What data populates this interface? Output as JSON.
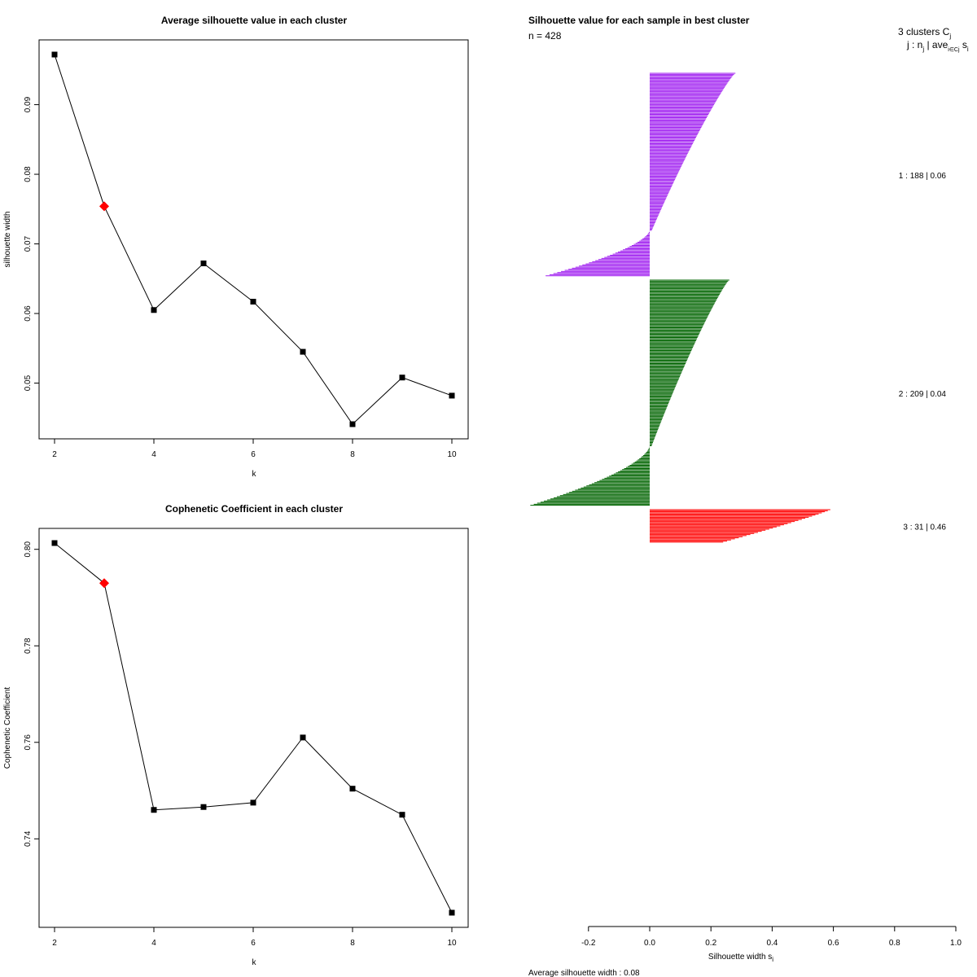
{
  "chart_data": [
    {
      "type": "line",
      "title": "Average silhouette value in each cluster",
      "xlabel": "k",
      "ylabel": "silhouette width",
      "x": [
        2,
        3,
        4,
        5,
        6,
        7,
        8,
        9,
        10
      ],
      "values": [
        0.0972,
        0.0754,
        0.0605,
        0.0672,
        0.0617,
        0.0545,
        0.0441,
        0.0508,
        0.0482
      ],
      "highlight": {
        "x": 3,
        "y": 0.0754,
        "color": "#ff0000"
      },
      "xlim": [
        2,
        10
      ],
      "ylim": [
        0.0441,
        0.0972
      ],
      "xticks": [
        2,
        4,
        6,
        8,
        10
      ],
      "xtick_labels": [
        "2",
        "4",
        "6",
        "8",
        "10"
      ],
      "yticks": [
        0.05,
        0.06,
        0.07,
        0.08,
        0.09
      ],
      "ytick_labels": [
        "0.05",
        "0.06",
        "0.07",
        "0.08",
        "0.09"
      ]
    },
    {
      "type": "line",
      "title": "Cophenetic Coefficient in each cluster",
      "xlabel": "k",
      "ylabel": "Cophenetic Coefficient",
      "x": [
        2,
        3,
        4,
        5,
        6,
        7,
        8,
        9,
        10
      ],
      "values": [
        0.8013,
        0.793,
        0.746,
        0.7466,
        0.7475,
        0.761,
        0.7504,
        0.745,
        0.7247
      ],
      "highlight": {
        "x": 3,
        "y": 0.793,
        "color": "#ff0000"
      },
      "xlim": [
        2,
        10
      ],
      "ylim": [
        0.7247,
        0.8013
      ],
      "xticks": [
        2,
        4,
        6,
        8,
        10
      ],
      "xtick_labels": [
        "2",
        "4",
        "6",
        "8",
        "10"
      ],
      "yticks": [
        0.74,
        0.76,
        0.78,
        0.8
      ],
      "ytick_labels": [
        "0.74",
        "0.76",
        "0.78",
        "0.80"
      ]
    },
    {
      "type": "bar",
      "orientation": "horizontal",
      "title": "Silhouette value for each sample in best cluster",
      "n_label": "n = 428",
      "header_line1": "3  clusters  C",
      "header_line1_sub": "j",
      "header_line2": "j :  n",
      "header_line2_sub": "j",
      "header_line2_rest": " | ave",
      "header_line2_sub2": "i∈Cj",
      "header_line2_tail": " s",
      "header_line2_tail_sub": "i",
      "xlabel": "Silhouette width s",
      "xlabel_sub": "i",
      "xlim": [
        -0.2,
        1.0
      ],
      "xticks": [
        -0.2,
        0.0,
        0.2,
        0.4,
        0.6,
        0.8,
        1.0
      ],
      "xtick_labels": [
        "-0.2",
        "0.0",
        "0.2",
        "0.4",
        "0.6",
        "0.8",
        "1.0"
      ],
      "footer": "Average silhouette width :  0.08",
      "clusters": [
        {
          "id": 1,
          "size": 188,
          "avg": 0.06,
          "color": "#a020f0",
          "max": 0.28,
          "min": -0.34,
          "pos_count": 146,
          "label": "1 :  188  |  0.06"
        },
        {
          "id": 2,
          "size": 209,
          "avg": 0.04,
          "color": "#006400",
          "max": 0.26,
          "min": -0.39,
          "pos_count": 154,
          "label": "2 :  209  |  0.04"
        },
        {
          "id": 3,
          "size": 31,
          "avg": 0.46,
          "color": "#ff0000",
          "max": 0.59,
          "min": 0.24,
          "pos_count": 31,
          "label": "3 :  31  |  0.46"
        }
      ]
    }
  ]
}
